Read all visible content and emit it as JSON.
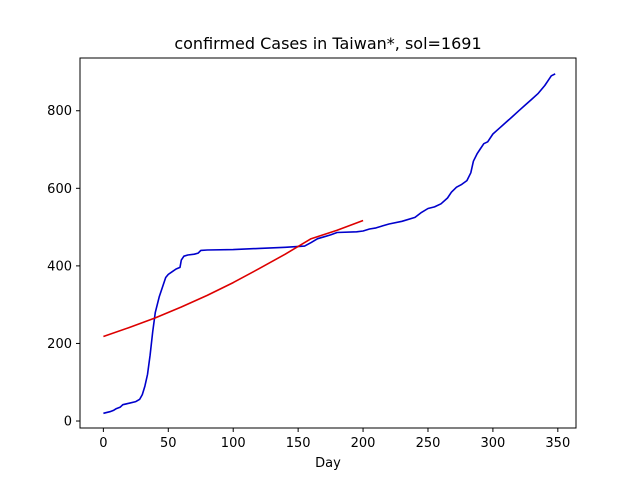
{
  "chart_data": {
    "type": "line",
    "title": "confirmed Cases in Taiwan*, sol=1691",
    "xlabel": "Day",
    "ylabel": "",
    "xlim": [
      -18,
      364
    ],
    "ylim": [
      -18,
      936
    ],
    "xticks": [
      0,
      50,
      100,
      150,
      200,
      250,
      300,
      350
    ],
    "yticks": [
      0,
      200,
      400,
      600,
      800
    ],
    "grid": false,
    "series": [
      {
        "color": "#0000cc",
        "points": [
          [
            0,
            20
          ],
          [
            5,
            24
          ],
          [
            8,
            28
          ],
          [
            10,
            32
          ],
          [
            13,
            36
          ],
          [
            15,
            42
          ],
          [
            20,
            46
          ],
          [
            25,
            50
          ],
          [
            28,
            56
          ],
          [
            30,
            68
          ],
          [
            32,
            90
          ],
          [
            34,
            120
          ],
          [
            36,
            170
          ],
          [
            38,
            230
          ],
          [
            40,
            280
          ],
          [
            43,
            320
          ],
          [
            46,
            350
          ],
          [
            48,
            370
          ],
          [
            50,
            378
          ],
          [
            53,
            385
          ],
          [
            56,
            392
          ],
          [
            59,
            396
          ],
          [
            60,
            415
          ],
          [
            62,
            425
          ],
          [
            65,
            428
          ],
          [
            70,
            430
          ],
          [
            73,
            433
          ],
          [
            75,
            440
          ],
          [
            80,
            441
          ],
          [
            100,
            442
          ],
          [
            120,
            445
          ],
          [
            140,
            448
          ],
          [
            155,
            451
          ],
          [
            160,
            460
          ],
          [
            165,
            470
          ],
          [
            170,
            475
          ],
          [
            175,
            480
          ],
          [
            180,
            486
          ],
          [
            195,
            488
          ],
          [
            200,
            490
          ],
          [
            205,
            495
          ],
          [
            210,
            498
          ],
          [
            215,
            503
          ],
          [
            220,
            508
          ],
          [
            230,
            515
          ],
          [
            240,
            525
          ],
          [
            245,
            538
          ],
          [
            250,
            548
          ],
          [
            255,
            552
          ],
          [
            260,
            560
          ],
          [
            265,
            575
          ],
          [
            268,
            590
          ],
          [
            272,
            603
          ],
          [
            276,
            610
          ],
          [
            280,
            620
          ],
          [
            283,
            640
          ],
          [
            285,
            670
          ],
          [
            288,
            690
          ],
          [
            290,
            700
          ],
          [
            293,
            715
          ],
          [
            296,
            720
          ],
          [
            300,
            740
          ],
          [
            305,
            755
          ],
          [
            310,
            770
          ],
          [
            315,
            785
          ],
          [
            320,
            800
          ],
          [
            325,
            815
          ],
          [
            330,
            830
          ],
          [
            335,
            845
          ],
          [
            340,
            865
          ],
          [
            343,
            880
          ],
          [
            345,
            890
          ],
          [
            348,
            895
          ]
        ]
      },
      {
        "color": "#dd0000",
        "points": [
          [
            0,
            218
          ],
          [
            20,
            241
          ],
          [
            40,
            266
          ],
          [
            60,
            294
          ],
          [
            80,
            324
          ],
          [
            100,
            357
          ],
          [
            120,
            393
          ],
          [
            140,
            430
          ],
          [
            160,
            470
          ],
          [
            180,
            492
          ],
          [
            200,
            517
          ]
        ]
      }
    ]
  }
}
